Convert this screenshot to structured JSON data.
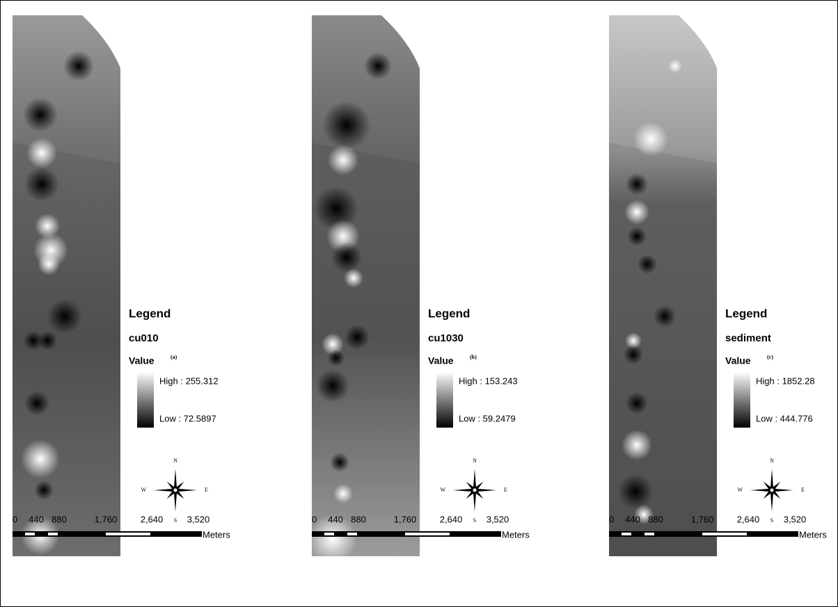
{
  "panels": [
    {
      "legend_title": "Legend",
      "layer": "cu010",
      "field": "Value",
      "tag": "(a)",
      "high": "High : 255.312",
      "low": "Low : 72.5897",
      "compass": {
        "n": "N",
        "s": "S",
        "e": "E",
        "w": "W"
      },
      "scale": {
        "ticks": [
          "0",
          "440",
          "880",
          "1,760",
          "2,640",
          "3,520"
        ],
        "unit": "Meters"
      }
    },
    {
      "legend_title": "Legend",
      "layer": "cu1030",
      "field": "Value",
      "tag": "(b)",
      "high": "High : 153.243",
      "low": "Low : 59.2479",
      "compass": {
        "n": "N",
        "s": "S",
        "e": "E",
        "w": "W"
      },
      "scale": {
        "ticks": [
          "0",
          "440",
          "880",
          "1,760",
          "2,640",
          "3,520"
        ],
        "unit": "Meters"
      }
    },
    {
      "legend_title": "Legend",
      "layer": "sediment",
      "field": "Value",
      "tag": "(c)",
      "high": "High : 1852.28",
      "low": "Low : 444.776",
      "compass": {
        "n": "N",
        "s": "S",
        "e": "E",
        "w": "W"
      },
      "scale": {
        "ticks": [
          "0",
          "440",
          "880",
          "1,760",
          "2,640",
          "3,520"
        ],
        "unit": "Meters"
      }
    }
  ]
}
